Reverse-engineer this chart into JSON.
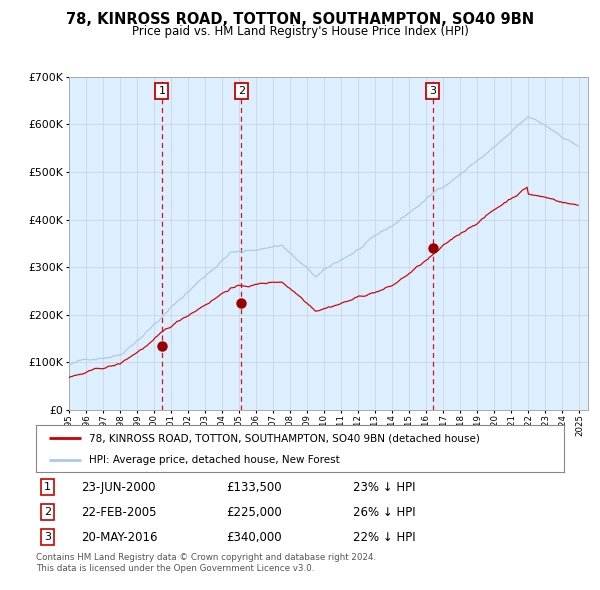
{
  "title": "78, KINROSS ROAD, TOTTON, SOUTHAMPTON, SO40 9BN",
  "subtitle": "Price paid vs. HM Land Registry's House Price Index (HPI)",
  "hpi_color": "#adc8e8",
  "price_color": "#cc0000",
  "marker_color": "#990000",
  "bg_color": "#ddeeff",
  "vline_color": "#cc0000",
  "grid_color": "#c8d0dc",
  "ylim": [
    0,
    700000
  ],
  "yticks": [
    0,
    100000,
    200000,
    300000,
    400000,
    500000,
    600000,
    700000
  ],
  "ytick_labels": [
    "£0",
    "£100K",
    "£200K",
    "£300K",
    "£400K",
    "£500K",
    "£600K",
    "£700K"
  ],
  "legend_label1": "78, KINROSS ROAD, TOTTON, SOUTHAMPTON, SO40 9BN (detached house)",
  "legend_label2": "HPI: Average price, detached house, New Forest",
  "sale1_date": "23-JUN-2000",
  "sale1_price": 133500,
  "sale1_pct": "23% ↓ HPI",
  "sale2_date": "22-FEB-2005",
  "sale2_price": 225000,
  "sale2_pct": "26% ↓ HPI",
  "sale3_date": "20-MAY-2016",
  "sale3_price": 340000,
  "sale3_pct": "22% ↓ HPI",
  "footnote1": "Contains HM Land Registry data © Crown copyright and database right 2024.",
  "footnote2": "This data is licensed under the Open Government Licence v3.0."
}
